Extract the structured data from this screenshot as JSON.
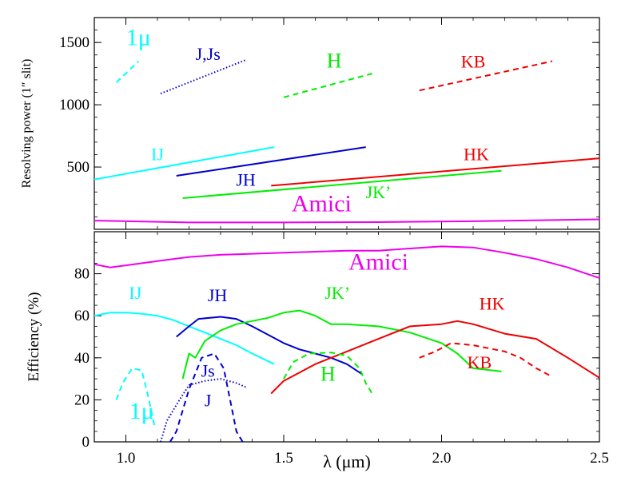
{
  "chart_data": [
    {
      "type": "line",
      "panel": "top",
      "xlabel": "",
      "ylabel": "Resolving power (1″ slit)",
      "xlim": [
        0.9,
        2.5
      ],
      "ylim": [
        0,
        1700
      ],
      "x_ticks": [
        1.0,
        1.5,
        2.0,
        2.5
      ],
      "y_ticks": [
        500,
        1000,
        1500
      ],
      "y_tick_labels": [
        "500",
        "1000",
        "1500"
      ],
      "series": [
        {
          "name": "1μ",
          "color": "#00ffff",
          "style": "dashed",
          "x": [
            0.97,
            1.04
          ],
          "y": [
            1180,
            1350
          ],
          "label_x": 1.04,
          "label_y": 1480,
          "label_size": 30
        },
        {
          "name": "J,Js",
          "color": "#0000cc",
          "style": "dotted",
          "x": [
            1.11,
            1.38
          ],
          "y": [
            1090,
            1360
          ],
          "label_x": 1.26,
          "label_y": 1360,
          "label_size": 22
        },
        {
          "name": "H",
          "color": "#00ee00",
          "style": "dashed",
          "x": [
            1.5,
            1.78
          ],
          "y": [
            1060,
            1250
          ],
          "label_x": 1.66,
          "label_y": 1300,
          "label_size": 26
        },
        {
          "name": "KB",
          "color": "#ee0000",
          "style": "dashed",
          "x": [
            1.93,
            2.35
          ],
          "y": [
            1115,
            1350
          ],
          "label_x": 2.1,
          "label_y": 1300,
          "label_size": 22
        },
        {
          "name": "IJ",
          "color": "#00ffff",
          "style": "solid",
          "x": [
            0.9,
            1.47
          ],
          "y": [
            400,
            660
          ],
          "label_x": 1.1,
          "label_y": 555,
          "label_size": 22
        },
        {
          "name": "JH",
          "color": "#0000cc",
          "style": "solid",
          "x": [
            1.16,
            1.76
          ],
          "y": [
            430,
            660
          ],
          "label_x": 1.38,
          "label_y": 350,
          "label_size": 22
        },
        {
          "name": "HK",
          "color": "#ee0000",
          "style": "solid",
          "x": [
            1.46,
            2.5
          ],
          "y": [
            350,
            570
          ],
          "label_x": 2.11,
          "label_y": 555,
          "label_size": 22
        },
        {
          "name": "JK’",
          "color": "#00ee00",
          "style": "solid",
          "x": [
            1.18,
            2.19
          ],
          "y": [
            250,
            470
          ],
          "label_x": 1.8,
          "label_y": 250,
          "label_size": 22
        },
        {
          "name": "Amici",
          "color": "#ee00ee",
          "style": "solid",
          "x": [
            0.9,
            1.2,
            1.5,
            1.8,
            2.1,
            2.5
          ],
          "y": [
            70,
            55,
            55,
            58,
            65,
            80
          ],
          "label_x": 1.62,
          "label_y": 145,
          "label_size": 30
        }
      ]
    },
    {
      "type": "line",
      "panel": "bottom",
      "xlabel": "λ (μm)",
      "ylabel": "Efficiency (%)",
      "xlim": [
        0.9,
        2.5
      ],
      "ylim": [
        0,
        100
      ],
      "x_ticks": [
        1.0,
        1.5,
        2.0,
        2.5
      ],
      "x_tick_labels": [
        "1.0",
        "1.5",
        "2.0",
        "2.5"
      ],
      "y_ticks": [
        0,
        20,
        40,
        60,
        80
      ],
      "y_tick_labels": [
        "0",
        "20",
        "40",
        "60",
        "80"
      ],
      "series": [
        {
          "name": "Amici",
          "color": "#ee00ee",
          "style": "solid",
          "x": [
            0.9,
            0.95,
            1.0,
            1.1,
            1.2,
            1.3,
            1.4,
            1.5,
            1.6,
            1.7,
            1.8,
            1.9,
            2.0,
            2.1,
            2.2,
            2.3,
            2.4,
            2.5
          ],
          "y": [
            84.5,
            83,
            84,
            86,
            88,
            89,
            89.5,
            90,
            90.5,
            91,
            91,
            92,
            93,
            92.5,
            90,
            87,
            83,
            78
          ],
          "label_x": 1.8,
          "label_y": 82,
          "label_size": 30
        },
        {
          "name": "IJ",
          "color": "#00ffff",
          "style": "solid",
          "x": [
            0.9,
            0.95,
            1.0,
            1.05,
            1.1,
            1.15,
            1.2,
            1.25,
            1.3,
            1.35,
            1.4,
            1.47
          ],
          "y": [
            60,
            61.5,
            61.5,
            61,
            60,
            58,
            55,
            52,
            49,
            46,
            42,
            37
          ],
          "label_x": 1.03,
          "label_y": 68,
          "label_size": 22
        },
        {
          "name": "JH",
          "color": "#0000cc",
          "style": "solid",
          "x": [
            1.16,
            1.2,
            1.23,
            1.3,
            1.35,
            1.4,
            1.45,
            1.5,
            1.55,
            1.6,
            1.65,
            1.7,
            1.75
          ],
          "y": [
            50,
            55,
            58.5,
            59.5,
            58.5,
            55,
            51,
            47,
            44,
            42,
            40,
            37,
            32
          ],
          "label_x": 1.29,
          "label_y": 67,
          "label_size": 22
        },
        {
          "name": "JK’",
          "color": "#00ee00",
          "style": "solid",
          "x": [
            1.18,
            1.2,
            1.22,
            1.25,
            1.3,
            1.35,
            1.4,
            1.45,
            1.5,
            1.55,
            1.6,
            1.65,
            1.7,
            1.8,
            1.9,
            2.0,
            2.05,
            2.1,
            2.19
          ],
          "y": [
            30,
            42,
            40,
            48,
            53,
            56,
            57.5,
            59,
            61.5,
            62.5,
            60,
            56,
            56,
            55,
            52,
            47,
            42,
            35,
            33.5
          ],
          "label_x": 1.67,
          "label_y": 68,
          "label_size": 22
        },
        {
          "name": "HK",
          "color": "#ee0000",
          "style": "solid",
          "x": [
            1.46,
            1.5,
            1.55,
            1.6,
            1.65,
            1.7,
            1.8,
            1.9,
            2.0,
            2.05,
            2.1,
            2.2,
            2.3,
            2.4,
            2.5
          ],
          "y": [
            23,
            29,
            33,
            37,
            40,
            43,
            49,
            55,
            56,
            57.5,
            56,
            51.5,
            49,
            40,
            30.5
          ],
          "label_x": 2.16,
          "label_y": 63,
          "label_size": 22
        },
        {
          "name": "H",
          "color": "#00ee00",
          "style": "dashed",
          "x": [
            1.5,
            1.53,
            1.58,
            1.65,
            1.7,
            1.74,
            1.76,
            1.78
          ],
          "y": [
            30,
            38,
            42,
            42.5,
            41,
            35,
            28,
            23
          ],
          "label_x": 1.64,
          "label_y": 29,
          "label_size": 26
        },
        {
          "name": "KB",
          "color": "#ee0000",
          "style": "dashed",
          "x": [
            1.93,
            1.98,
            2.03,
            2.1,
            2.2,
            2.25,
            2.3,
            2.35
          ],
          "y": [
            40,
            43,
            47,
            46,
            43,
            40,
            35,
            31
          ],
          "label_x": 2.12,
          "label_y": 35,
          "label_size": 22
        },
        {
          "name": "1μ",
          "color": "#00ffff",
          "style": "dashed",
          "x": [
            0.97,
            0.99,
            1.02,
            1.05,
            1.07,
            1.09
          ],
          "y": [
            20,
            28,
            35,
            34,
            22,
            8
          ],
          "label_x": 1.05,
          "label_y": 11,
          "label_size": 30
        },
        {
          "name": "Js",
          "color": "#0000cc",
          "style": "dashed",
          "x": [
            1.14,
            1.16,
            1.2,
            1.24,
            1.28,
            1.31,
            1.33,
            1.35,
            1.37
          ],
          "y": [
            0,
            5,
            25,
            40,
            42,
            35,
            20,
            5,
            0
          ],
          "label_x": 1.26,
          "label_y": 31,
          "label_size": 22
        },
        {
          "name": "J",
          "color": "#0000cc",
          "style": "dotted",
          "x": [
            1.11,
            1.13,
            1.17,
            1.2,
            1.25,
            1.3,
            1.35,
            1.38
          ],
          "y": [
            0,
            10,
            20,
            27,
            29,
            30,
            28,
            26
          ],
          "label_x": 1.26,
          "label_y": 17,
          "label_size": 22
        }
      ]
    }
  ]
}
